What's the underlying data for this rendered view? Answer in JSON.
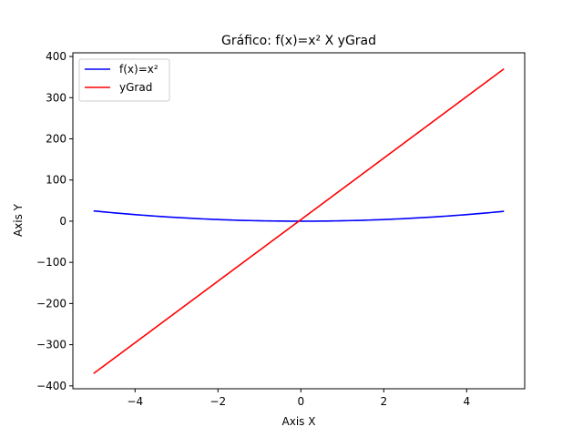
{
  "chart_data": {
    "type": "line",
    "title": "Gráfico: f(x)=x²  X  yGrad",
    "xlabel": "Axis X",
    "ylabel": "Axis Y",
    "xlim": [
      -5.5,
      5.4
    ],
    "ylim": [
      -407,
      409
    ],
    "x_ticks": [
      -4,
      -2,
      0,
      2,
      4
    ],
    "x_tick_labels": [
      "−4",
      "−2",
      "0",
      "2",
      "4"
    ],
    "y_ticks": [
      -400,
      -300,
      -200,
      -100,
      0,
      100,
      200,
      300,
      400
    ],
    "y_tick_labels": [
      "−400",
      "−300",
      "−200",
      "−100",
      "0",
      "100",
      "200",
      "300",
      "400"
    ],
    "grid": false,
    "legend_position": "top-left",
    "series": [
      {
        "name": "f(x)=x²",
        "color": "#0000ff",
        "x": [
          -5,
          -4.5,
          -4,
          -3.5,
          -3,
          -2.5,
          -2,
          -1.5,
          -1,
          -0.5,
          0,
          0.5,
          1,
          1.5,
          2,
          2.5,
          3,
          3.5,
          4,
          4.5,
          4.9
        ],
        "y": [
          25,
          20.25,
          16,
          12.25,
          9,
          6.25,
          4,
          2.25,
          1,
          0.25,
          0,
          0.25,
          1,
          2.25,
          4,
          6.25,
          9,
          12.25,
          16,
          20.25,
          24.01
        ]
      },
      {
        "name": "yGrad",
        "color": "#ff0000",
        "x": [
          -5,
          4.9
        ],
        "y": [
          -370,
          370
        ]
      }
    ]
  }
}
